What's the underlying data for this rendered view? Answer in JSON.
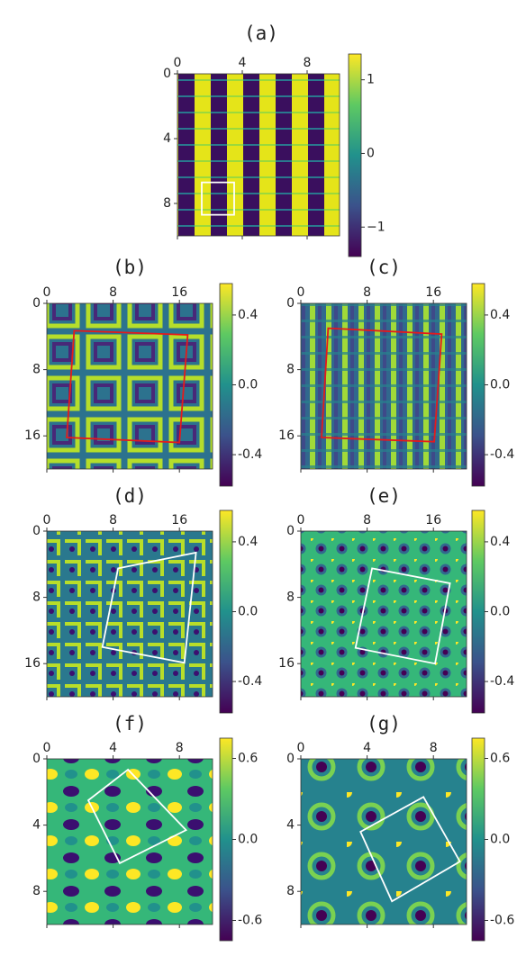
{
  "chart_data": [
    {
      "type": "heatmap",
      "title": "(a)",
      "xlim": [
        0,
        10
      ],
      "ylim": [
        0,
        10
      ],
      "y_inverted": true,
      "xticks": [
        0,
        4,
        8
      ],
      "yticks": [
        0,
        4,
        8
      ],
      "clim": [
        -1.4,
        1.35
      ],
      "cticks": [
        {
          "value": -1,
          "label": "−1"
        },
        0,
        1
      ],
      "box": {
        "color": "#ffffff",
        "corners": [
          [
            1.5,
            6.7
          ],
          [
            3.5,
            6.7
          ],
          [
            3.5,
            8.7
          ],
          [
            1.5,
            8.7
          ]
        ]
      }
    },
    {
      "type": "heatmap",
      "title": "(b)",
      "xlim": [
        0,
        20
      ],
      "ylim": [
        0,
        20
      ],
      "y_inverted": true,
      "xticks": [
        0,
        8,
        16
      ],
      "yticks": [
        0,
        8,
        16
      ],
      "clim": [
        -0.58,
        0.58
      ],
      "cticks": [
        {
          "value": -0.4,
          "label": "-0.4"
        },
        {
          "value": 0,
          "label": "0.0"
        },
        0.4
      ],
      "box": {
        "color": "#e41a1c",
        "corners": [
          [
            3.3,
            3.3
          ],
          [
            17.0,
            3.8
          ],
          [
            16.0,
            16.8
          ],
          [
            2.4,
            16.2
          ]
        ]
      }
    },
    {
      "type": "heatmap",
      "title": "(c)",
      "xlim": [
        0,
        20
      ],
      "ylim": [
        0,
        20
      ],
      "y_inverted": true,
      "xticks": [
        0,
        8,
        16
      ],
      "yticks": [
        0,
        8,
        16
      ],
      "clim": [
        -0.58,
        0.58
      ],
      "cticks": [
        {
          "value": -0.4,
          "label": "-0.4"
        },
        {
          "value": 0,
          "label": "0.0"
        },
        0.4
      ],
      "box": {
        "color": "#e41a1c",
        "corners": [
          [
            3.3,
            3.0
          ],
          [
            17.0,
            3.7
          ],
          [
            16.1,
            16.7
          ],
          [
            2.5,
            16.2
          ]
        ]
      }
    },
    {
      "type": "heatmap",
      "title": "(d)",
      "xlim": [
        0,
        20
      ],
      "ylim": [
        0,
        20
      ],
      "y_inverted": true,
      "xticks": [
        0,
        8,
        16
      ],
      "yticks": [
        0,
        8,
        16
      ],
      "clim": [
        -0.58,
        0.58
      ],
      "cticks": [
        {
          "value": -0.4,
          "label": "-0.4"
        },
        {
          "value": 0,
          "label": "0.0"
        },
        0.4
      ],
      "box": {
        "color": "#ffffff",
        "corners": [
          [
            8.6,
            4.5
          ],
          [
            18.0,
            2.6
          ],
          [
            16.6,
            15.9
          ],
          [
            6.7,
            14.0
          ]
        ]
      }
    },
    {
      "type": "heatmap",
      "title": "(e)",
      "xlim": [
        0,
        20
      ],
      "ylim": [
        0,
        20
      ],
      "y_inverted": true,
      "xticks": [
        0,
        8,
        16
      ],
      "yticks": [
        0,
        8,
        16
      ],
      "clim": [
        -0.58,
        0.58
      ],
      "cticks": [
        {
          "value": -0.4,
          "label": "-0.4"
        },
        {
          "value": 0,
          "label": "0.0"
        },
        0.4
      ],
      "box": {
        "color": "#ffffff",
        "corners": [
          [
            8.6,
            4.5
          ],
          [
            18.0,
            6.3
          ],
          [
            16.2,
            16.0
          ],
          [
            6.6,
            14.1
          ]
        ]
      }
    },
    {
      "type": "heatmap",
      "title": "(f)",
      "xlim": [
        0,
        10
      ],
      "ylim": [
        0,
        10
      ],
      "y_inverted": true,
      "xticks": [
        0,
        4,
        8
      ],
      "yticks": [
        0,
        4,
        8
      ],
      "clim": [
        -0.75,
        0.75
      ],
      "cticks": [
        {
          "value": -0.6,
          "label": "-0.6"
        },
        {
          "value": 0,
          "label": "0.0"
        },
        0.6
      ],
      "box": {
        "color": "#ffffff",
        "corners": [
          [
            4.9,
            0.65
          ],
          [
            8.4,
            4.3
          ],
          [
            4.4,
            6.3
          ],
          [
            2.5,
            2.5
          ]
        ]
      }
    },
    {
      "type": "heatmap",
      "title": "(g)",
      "xlim": [
        0,
        10
      ],
      "ylim": [
        0,
        10
      ],
      "y_inverted": true,
      "xticks": [
        0,
        4,
        8
      ],
      "yticks": [
        0,
        4,
        8
      ],
      "clim": [
        -0.75,
        0.75
      ],
      "cticks": [
        {
          "value": -0.6,
          "label": "-0.6"
        },
        {
          "value": 0,
          "label": "0.0"
        },
        0.6
      ],
      "box": {
        "color": "#ffffff",
        "corners": [
          [
            7.4,
            2.3
          ],
          [
            9.6,
            6.2
          ],
          [
            5.5,
            8.6
          ],
          [
            3.6,
            4.4
          ]
        ]
      }
    }
  ]
}
